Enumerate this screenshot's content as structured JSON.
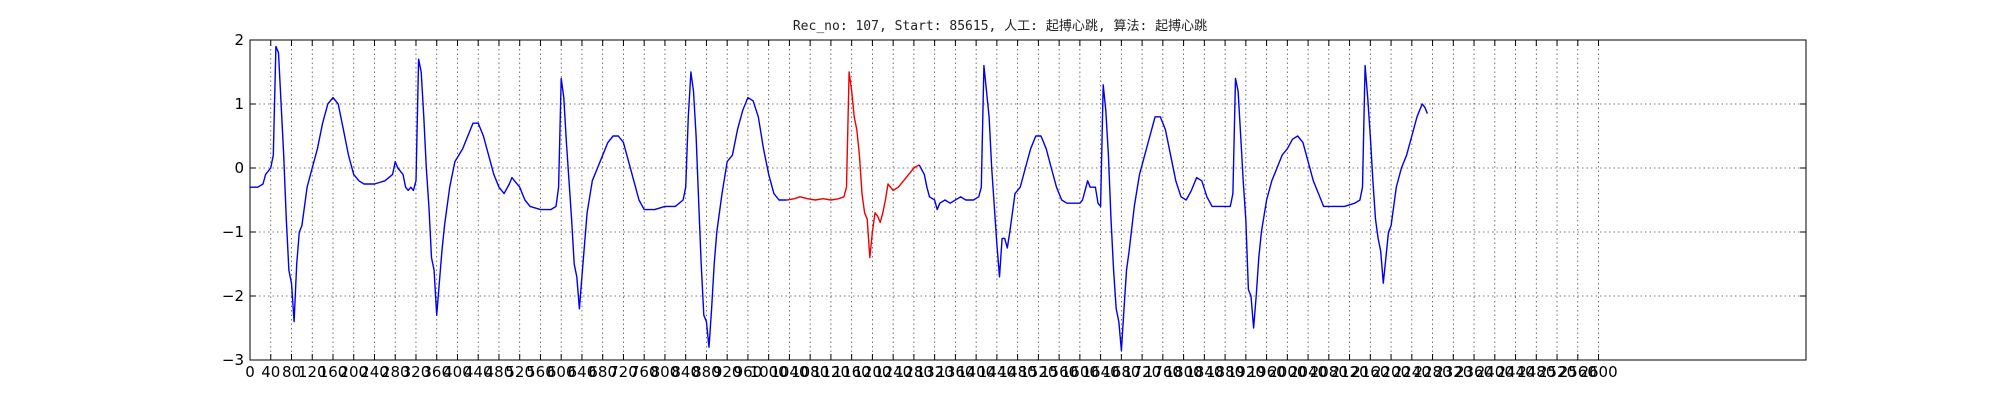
{
  "chart_data": {
    "type": "line",
    "title": "Rec_no: 107, Start: 85615, 人工: 起搏心跳, 算法: 起搏心跳",
    "xlabel": "",
    "ylabel": "",
    "xlim": [
      0,
      3000
    ],
    "ylim": [
      -3,
      2
    ],
    "grid": true,
    "yticks": [
      2,
      1,
      0,
      -1,
      -2,
      -3
    ],
    "xticks": [
      0,
      40,
      80,
      120,
      160,
      200,
      240,
      280,
      320,
      360,
      400,
      440,
      480,
      520,
      560,
      600,
      640,
      680,
      720,
      760,
      800,
      840,
      880,
      920,
      960,
      1000,
      1040,
      1080,
      1120,
      1160,
      1200,
      1240,
      1280,
      1320,
      1360,
      1400,
      1440,
      1480,
      1520,
      1560,
      1600,
      1640,
      1680,
      1720,
      1760,
      1800,
      1840,
      1880,
      1920,
      1960,
      2000,
      2040,
      2080,
      2120,
      2160,
      2200,
      2240,
      2280,
      2320,
      2360,
      2400,
      2440,
      2480,
      2520,
      2560,
      2600
    ],
    "series": [
      {
        "color": "#0000ee",
        "points": [
          [
            0,
            -0.3
          ],
          [
            15,
            -0.3
          ],
          [
            25,
            -0.25
          ],
          [
            30,
            -0.1
          ],
          [
            40,
            0
          ],
          [
            45,
            0.2
          ],
          [
            50,
            1.9
          ],
          [
            55,
            1.8
          ],
          [
            60,
            1
          ],
          [
            65,
            0.2
          ],
          [
            70,
            -0.8
          ],
          [
            75,
            -1.6
          ],
          [
            80,
            -1.8
          ],
          [
            85,
            -2.4
          ],
          [
            90,
            -1.5
          ],
          [
            95,
            -1
          ],
          [
            100,
            -0.9
          ],
          [
            110,
            -0.3
          ],
          [
            120,
            0
          ],
          [
            130,
            0.3
          ],
          [
            140,
            0.7
          ],
          [
            150,
            1
          ],
          [
            160,
            1.1
          ],
          [
            170,
            1
          ],
          [
            180,
            0.6
          ],
          [
            190,
            0.2
          ],
          [
            200,
            -0.1
          ],
          [
            210,
            -0.2
          ],
          [
            220,
            -0.25
          ],
          [
            240,
            -0.25
          ],
          [
            260,
            -0.2
          ],
          [
            275,
            -0.1
          ],
          [
            280,
            0.1
          ],
          [
            285,
            0
          ],
          [
            295,
            -0.1
          ],
          [
            300,
            -0.3
          ],
          [
            305,
            -0.35
          ],
          [
            310,
            -0.3
          ],
          [
            315,
            -0.35
          ],
          [
            320,
            -0.2
          ],
          [
            325,
            1.7
          ],
          [
            330,
            1.5
          ],
          [
            335,
            0.8
          ],
          [
            340,
            0
          ],
          [
            345,
            -0.6
          ],
          [
            350,
            -1.4
          ],
          [
            355,
            -1.6
          ],
          [
            360,
            -2.3
          ],
          [
            365,
            -1.8
          ],
          [
            370,
            -1.3
          ],
          [
            375,
            -0.9
          ],
          [
            385,
            -0.3
          ],
          [
            395,
            0.1
          ],
          [
            410,
            0.3
          ],
          [
            420,
            0.5
          ],
          [
            430,
            0.7
          ],
          [
            440,
            0.7
          ],
          [
            450,
            0.5
          ],
          [
            460,
            0.2
          ],
          [
            470,
            -0.1
          ],
          [
            480,
            -0.3
          ],
          [
            490,
            -0.4
          ],
          [
            500,
            -0.25
          ],
          [
            505,
            -0.15
          ],
          [
            510,
            -0.2
          ],
          [
            520,
            -0.3
          ],
          [
            530,
            -0.5
          ],
          [
            540,
            -0.6
          ],
          [
            560,
            -0.65
          ],
          [
            580,
            -0.65
          ],
          [
            590,
            -0.6
          ],
          [
            595,
            -0.3
          ],
          [
            600,
            1.4
          ],
          [
            605,
            1.1
          ],
          [
            610,
            0.4
          ],
          [
            615,
            -0.2
          ],
          [
            620,
            -0.8
          ],
          [
            625,
            -1.5
          ],
          [
            630,
            -1.7
          ],
          [
            635,
            -2.2
          ],
          [
            640,
            -1.7
          ],
          [
            645,
            -1.2
          ],
          [
            650,
            -0.7
          ],
          [
            660,
            -0.2
          ],
          [
            670,
            0
          ],
          [
            680,
            0.2
          ],
          [
            690,
            0.4
          ],
          [
            700,
            0.5
          ],
          [
            710,
            0.5
          ],
          [
            720,
            0.4
          ],
          [
            730,
            0.1
          ],
          [
            740,
            -0.2
          ],
          [
            750,
            -0.5
          ],
          [
            760,
            -0.65
          ],
          [
            780,
            -0.65
          ],
          [
            800,
            -0.6
          ],
          [
            820,
            -0.6
          ],
          [
            835,
            -0.5
          ],
          [
            840,
            -0.3
          ],
          [
            845,
            0.8
          ],
          [
            850,
            1.5
          ],
          [
            855,
            1.2
          ],
          [
            860,
            0.5
          ],
          [
            865,
            -0.5
          ],
          [
            870,
            -1.5
          ],
          [
            875,
            -2.3
          ],
          [
            880,
            -2.4
          ],
          [
            885,
            -2.8
          ],
          [
            890,
            -2.2
          ],
          [
            895,
            -1.5
          ],
          [
            900,
            -1
          ],
          [
            910,
            -0.4
          ],
          [
            920,
            0.1
          ],
          [
            930,
            0.2
          ],
          [
            940,
            0.6
          ],
          [
            950,
            0.9
          ],
          [
            960,
            1.1
          ],
          [
            970,
            1.05
          ],
          [
            980,
            0.8
          ],
          [
            990,
            0.3
          ],
          [
            1000,
            -0.1
          ],
          [
            1010,
            -0.4
          ],
          [
            1020,
            -0.5
          ],
          [
            1035,
            -0.5
          ]
        ]
      },
      {
        "color": "#ee0000",
        "points": [
          [
            1035,
            -0.5
          ],
          [
            1050,
            -0.48
          ],
          [
            1060,
            -0.45
          ],
          [
            1075,
            -0.48
          ],
          [
            1090,
            -0.5
          ],
          [
            1105,
            -0.48
          ],
          [
            1120,
            -0.5
          ],
          [
            1135,
            -0.48
          ],
          [
            1145,
            -0.45
          ],
          [
            1150,
            -0.3
          ],
          [
            1155,
            1.5
          ],
          [
            1160,
            1.2
          ],
          [
            1165,
            0.8
          ],
          [
            1170,
            0.6
          ],
          [
            1175,
            0.2
          ],
          [
            1180,
            -0.4
          ],
          [
            1185,
            -0.7
          ],
          [
            1190,
            -0.8
          ],
          [
            1195,
            -1.4
          ],
          [
            1200,
            -1
          ],
          [
            1205,
            -0.7
          ],
          [
            1210,
            -0.75
          ],
          [
            1215,
            -0.85
          ],
          [
            1220,
            -0.7
          ],
          [
            1225,
            -0.5
          ],
          [
            1230,
            -0.25
          ],
          [
            1235,
            -0.3
          ],
          [
            1240,
            -0.35
          ],
          [
            1250,
            -0.3
          ],
          [
            1260,
            -0.2
          ],
          [
            1270,
            -0.1
          ],
          [
            1280,
            0
          ],
          [
            1290,
            0.05
          ]
        ]
      },
      {
        "color": "#0000ee",
        "points": [
          [
            1290,
            0.05
          ],
          [
            1300,
            -0.1
          ],
          [
            1305,
            -0.3
          ],
          [
            1310,
            -0.45
          ],
          [
            1320,
            -0.5
          ],
          [
            1325,
            -0.65
          ],
          [
            1330,
            -0.55
          ],
          [
            1340,
            -0.5
          ],
          [
            1350,
            -0.55
          ],
          [
            1360,
            -0.5
          ],
          [
            1370,
            -0.45
          ],
          [
            1380,
            -0.5
          ],
          [
            1395,
            -0.5
          ],
          [
            1405,
            -0.45
          ],
          [
            1410,
            -0.3
          ],
          [
            1415,
            1.6
          ],
          [
            1420,
            1.2
          ],
          [
            1425,
            0.8
          ],
          [
            1430,
            0
          ],
          [
            1435,
            -0.6
          ],
          [
            1440,
            -1.2
          ],
          [
            1445,
            -1.7
          ],
          [
            1450,
            -1.1
          ],
          [
            1455,
            -1.1
          ],
          [
            1460,
            -1.25
          ],
          [
            1465,
            -1
          ],
          [
            1470,
            -0.7
          ],
          [
            1475,
            -0.4
          ],
          [
            1485,
            -0.3
          ],
          [
            1495,
            0
          ],
          [
            1505,
            0.3
          ],
          [
            1515,
            0.5
          ],
          [
            1525,
            0.5
          ],
          [
            1535,
            0.3
          ],
          [
            1545,
            0
          ],
          [
            1555,
            -0.3
          ],
          [
            1565,
            -0.5
          ],
          [
            1575,
            -0.55
          ],
          [
            1590,
            -0.55
          ],
          [
            1600,
            -0.55
          ],
          [
            1605,
            -0.5
          ],
          [
            1610,
            -0.35
          ],
          [
            1615,
            -0.2
          ],
          [
            1620,
            -0.3
          ],
          [
            1630,
            -0.3
          ],
          [
            1635,
            -0.55
          ],
          [
            1640,
            -0.6
          ],
          [
            1645,
            1.3
          ],
          [
            1650,
            0.9
          ],
          [
            1655,
            0.2
          ],
          [
            1660,
            -0.8
          ],
          [
            1665,
            -1.6
          ],
          [
            1670,
            -2.2
          ],
          [
            1675,
            -2.4
          ],
          [
            1680,
            -2.85
          ],
          [
            1685,
            -2.2
          ],
          [
            1690,
            -1.6
          ],
          [
            1695,
            -1.3
          ],
          [
            1705,
            -0.6
          ],
          [
            1715,
            -0.1
          ],
          [
            1725,
            0.2
          ],
          [
            1735,
            0.5
          ],
          [
            1745,
            0.8
          ],
          [
            1755,
            0.8
          ],
          [
            1765,
            0.6
          ],
          [
            1775,
            0.2
          ],
          [
            1785,
            -0.2
          ],
          [
            1795,
            -0.45
          ],
          [
            1805,
            -0.5
          ],
          [
            1815,
            -0.35
          ],
          [
            1825,
            -0.15
          ],
          [
            1835,
            -0.2
          ],
          [
            1845,
            -0.45
          ],
          [
            1855,
            -0.6
          ],
          [
            1875,
            -0.6
          ],
          [
            1890,
            -0.6
          ],
          [
            1895,
            -0.4
          ],
          [
            1900,
            1.4
          ],
          [
            1905,
            1.2
          ],
          [
            1910,
            0.5
          ],
          [
            1915,
            -0.2
          ],
          [
            1920,
            -0.8
          ],
          [
            1925,
            -1.9
          ],
          [
            1930,
            -2
          ],
          [
            1935,
            -2.5
          ],
          [
            1940,
            -2
          ],
          [
            1945,
            -1.4
          ],
          [
            1950,
            -1
          ],
          [
            1960,
            -0.5
          ],
          [
            1970,
            -0.2
          ],
          [
            1980,
            0
          ],
          [
            1990,
            0.2
          ],
          [
            2000,
            0.3
          ],
          [
            2010,
            0.45
          ],
          [
            2020,
            0.5
          ],
          [
            2030,
            0.4
          ],
          [
            2040,
            0.1
          ],
          [
            2050,
            -0.2
          ],
          [
            2060,
            -0.4
          ],
          [
            2070,
            -0.6
          ],
          [
            2090,
            -0.6
          ],
          [
            2110,
            -0.6
          ],
          [
            2130,
            -0.55
          ],
          [
            2140,
            -0.5
          ],
          [
            2145,
            -0.3
          ],
          [
            2150,
            1.6
          ],
          [
            2155,
            1.1
          ],
          [
            2160,
            0.5
          ],
          [
            2165,
            -0.2
          ],
          [
            2170,
            -0.8
          ],
          [
            2175,
            -1.1
          ],
          [
            2180,
            -1.3
          ],
          [
            2185,
            -1.8
          ],
          [
            2190,
            -1.4
          ],
          [
            2195,
            -1
          ],
          [
            2200,
            -0.9
          ],
          [
            2210,
            -0.3
          ],
          [
            2220,
            0
          ],
          [
            2230,
            0.2
          ],
          [
            2240,
            0.5
          ],
          [
            2250,
            0.8
          ],
          [
            2260,
            1
          ],
          [
            2265,
            0.95
          ],
          [
            2270,
            0.85
          ]
        ]
      }
    ]
  }
}
